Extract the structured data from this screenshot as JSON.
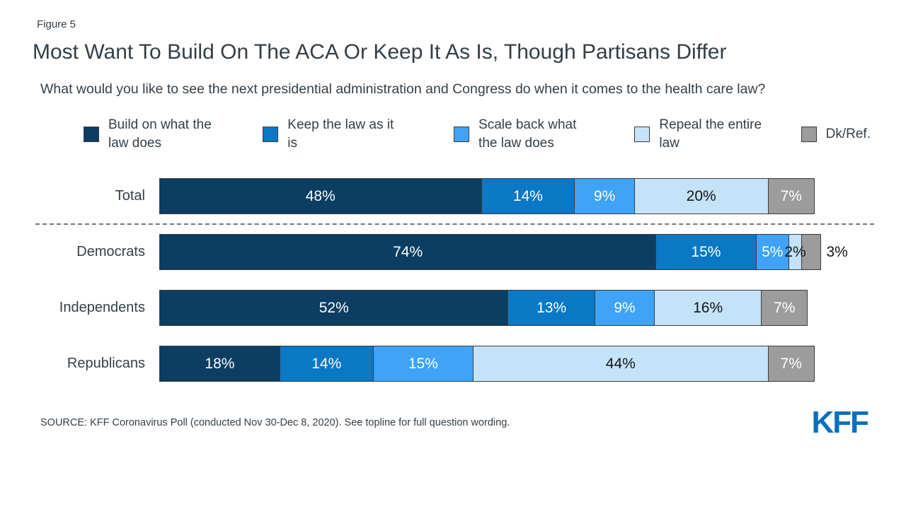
{
  "page": {
    "figure_label": "Figure 5",
    "title": "Most Want To Build On The ACA Or Keep It As Is, Though Partisans Differ",
    "question": "What would you like to see the next presidential administration and Congress do when it comes to the health care law?",
    "source": "SOURCE: KFF Coronavirus Poll (conducted Nov 30-Dec 8, 2020). See topline for full question wording.",
    "logo_text": "KFF"
  },
  "colors": {
    "title_text": "#333F48",
    "segment_border": "#3C3C3C",
    "logo_blue": "#0A6FBF",
    "separator_gray": "#777777"
  },
  "chart_data": {
    "type": "bar",
    "orientation": "horizontal-stacked",
    "title": "Most Want To Build On The ACA Or Keep It As Is, Though Partisans Differ",
    "xlabel": "",
    "ylabel": "",
    "xlim": [
      0,
      100
    ],
    "grid": false,
    "legend_position": "top",
    "value_suffix": "%",
    "categories": [
      "Total",
      "Democrats",
      "Independents",
      "Republicans"
    ],
    "series": [
      {
        "name": "Build on what the law does",
        "color": "#0B3E62",
        "values": [
          48,
          74,
          52,
          18
        ]
      },
      {
        "name": "Keep the law as it is",
        "color": "#0B78C5",
        "values": [
          14,
          15,
          13,
          14
        ]
      },
      {
        "name": "Scale back what the law does",
        "color": "#3FA3F7",
        "values": [
          9,
          5,
          9,
          15
        ]
      },
      {
        "name": "Repeal the entire law",
        "color": "#C4E3F9",
        "values": [
          20,
          2,
          16,
          44
        ]
      },
      {
        "name": "Dk/Ref.",
        "color": "#9C9C9C",
        "values": [
          7,
          3,
          7,
          7
        ]
      }
    ],
    "series_label_color": [
      "light",
      "light",
      "light",
      "dark",
      "light"
    ],
    "label_overrides": {
      "1": {
        "3": "overflow",
        "4": "outside"
      }
    },
    "separator_after_row": 0
  }
}
